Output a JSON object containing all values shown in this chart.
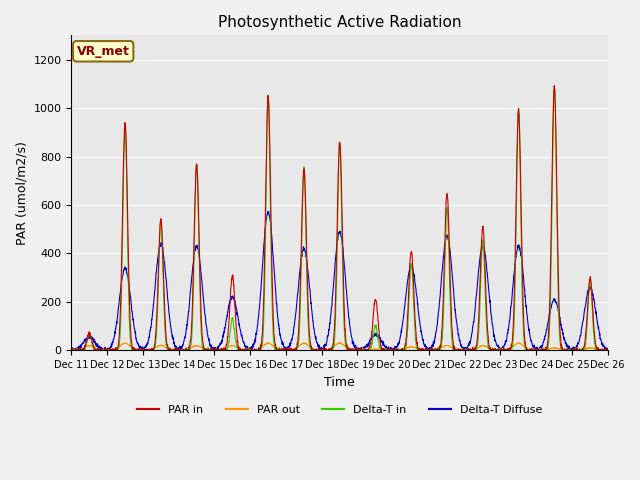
{
  "title": "Photosynthetic Active Radiation",
  "xlabel": "Time",
  "ylabel": "PAR (umol/m2/s)",
  "ylim": [
    0,
    1300
  ],
  "yticks": [
    0,
    200,
    400,
    600,
    800,
    1000,
    1200
  ],
  "label_text": "VR_met",
  "fig_facecolor": "#f0f0f0",
  "axes_facecolor": "#e8e8e8",
  "legend_labels": [
    "PAR in",
    "PAR out",
    "Delta-T in",
    "Delta-T Diffuse"
  ],
  "legend_colors": [
    "#cc0000",
    "#ff9900",
    "#33cc00",
    "#0000cc"
  ],
  "n_days": 15,
  "start_day": 11,
  "peaks_par_in": [
    70,
    940,
    540,
    770,
    310,
    1050,
    750,
    860,
    210,
    410,
    650,
    510,
    990,
    1090,
    300
  ],
  "peaks_par_out": [
    20,
    30,
    20,
    20,
    20,
    30,
    30,
    30,
    5,
    15,
    20,
    20,
    30,
    10,
    10
  ],
  "peaks_delta_in": [
    70,
    940,
    540,
    770,
    130,
    1050,
    760,
    860,
    100,
    360,
    590,
    450,
    1000,
    1090,
    290
  ],
  "peaks_delta_dif": [
    55,
    340,
    440,
    430,
    220,
    570,
    420,
    490,
    65,
    350,
    470,
    430,
    430,
    210,
    260
  ]
}
